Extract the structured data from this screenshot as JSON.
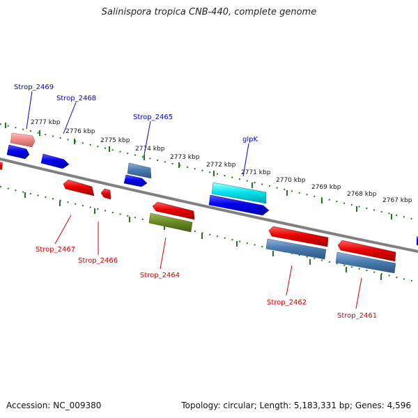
{
  "title": "Salinispora tropica CNB-440, complete genome",
  "footer": {
    "accession": "Accession: NC_009380",
    "summary": "Topology: circular; Length: 5,183,331 bp; Genes: 4,596"
  },
  "colors": {
    "forward_label": "#0000cc",
    "reverse_label": "#cc0000",
    "tick": "#1a7a1a",
    "backbone": "#808080"
  },
  "kbp_labels": [
    "2777 kbp",
    "2776 kbp",
    "2775 kbp",
    "2774 kbp",
    "2773 kbp",
    "2772 kbp",
    "2771 kbp",
    "2770 kbp",
    "2769 kbp",
    "2768 kbp",
    "2767 kbp"
  ],
  "gene_labels_top": [
    "Strop_2469",
    "Strop_2468",
    "Strop_2465",
    "glpK"
  ],
  "gene_labels_bottom": [
    "Strop_2467",
    "Strop_2466",
    "Strop_2464",
    "Strop_2462",
    "Strop_2461"
  ]
}
